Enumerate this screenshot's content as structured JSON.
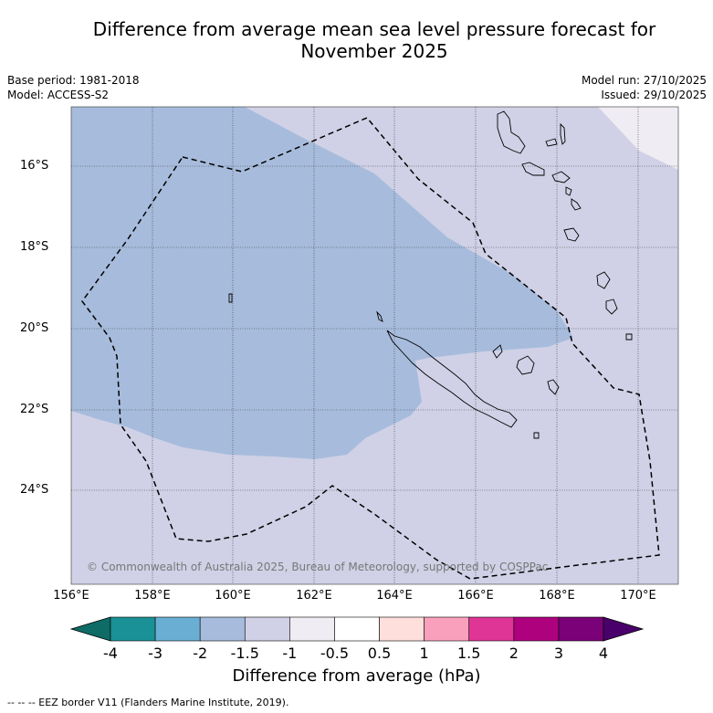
{
  "title_line1": "Difference from average mean sea level pressure forecast for",
  "title_line2": "November 2025",
  "base_period": "Base period: 1981-2018",
  "model": "Model: ACCESS-S2",
  "model_run": "Model run: 27/10/2025",
  "issued": "Issued: 29/10/2025",
  "copyright": "© Commonwealth of Australia 2025, Bureau of Meteorology, supported by COSPPac",
  "lon_labels": [
    "156°E",
    "158°E",
    "160°E",
    "162°E",
    "164°E",
    "166°E",
    "168°E",
    "170°E"
  ],
  "lat_labels": [
    "16°S",
    "18°S",
    "20°S",
    "22°S",
    "24°S"
  ],
  "colorbar": {
    "ticks": [
      "-4",
      "-3",
      "-2",
      "-1.5",
      "-1",
      "-0.5",
      "0.5",
      "1",
      "1.5",
      "2",
      "3",
      "4"
    ],
    "colors": [
      "#0e6b66",
      "#1a9196",
      "#6aaed3",
      "#a7bcdc",
      "#d0d1e6",
      "#f0ecf3",
      "#ffffff",
      "#ffdfdc",
      "#f9a0bc",
      "#de3596",
      "#ae017e",
      "#7a0177",
      "#49006a"
    ],
    "label": "Difference from average (hPa)"
  },
  "legend_note": "--  --  -- EEZ border V11 (Flanders Marine Institute, 2019)."
}
